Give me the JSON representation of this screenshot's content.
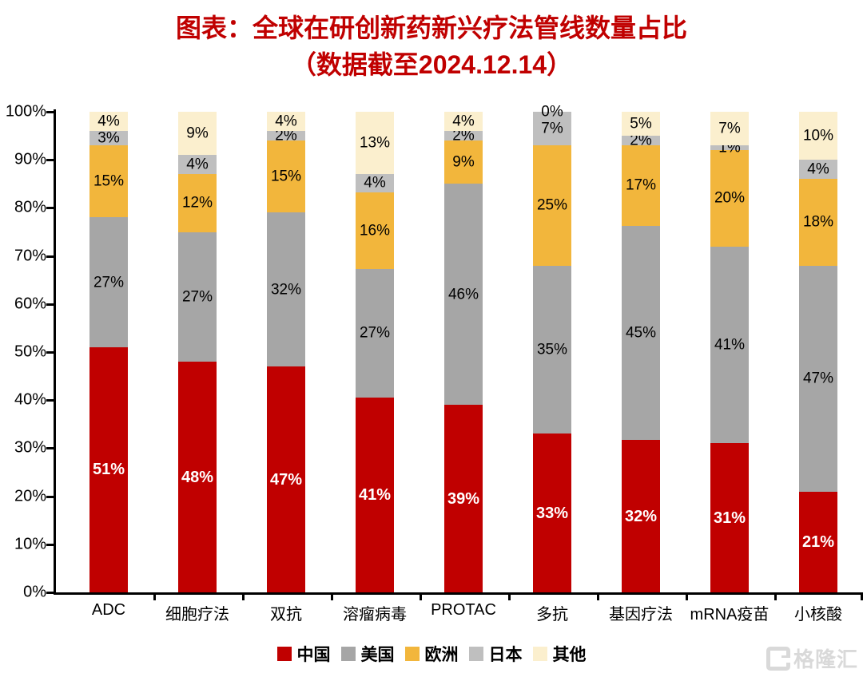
{
  "title": {
    "line1": "图表：全球在研创新药新兴疗法管线数量占比",
    "line2": "（数据截至2024.12.14）",
    "color": "#C00000"
  },
  "watermark": {
    "text": "格隆汇"
  },
  "chart_data": {
    "type": "bar",
    "stacked": true,
    "title": "图表：全球在研创新药新兴疗法管线数量占比（数据截至2024.12.14）",
    "categories": [
      "ADC",
      "细胞疗法",
      "双抗",
      "溶瘤病毒",
      "PROTAC",
      "多抗",
      "基因疗法",
      "mRNA疫苗",
      "小核酸"
    ],
    "series": [
      {
        "name": "中国",
        "color": "#C00000",
        "label_color": "#FFFFFF",
        "label_bold": true,
        "values": [
          51,
          48,
          47,
          41,
          39,
          33,
          32,
          31,
          21
        ]
      },
      {
        "name": "美国",
        "color": "#A6A6A6",
        "label_color": "#000000",
        "label_bold": false,
        "values": [
          27,
          27,
          32,
          27,
          46,
          35,
          45,
          41,
          47
        ]
      },
      {
        "name": "欧洲",
        "color": "#F2B63C",
        "label_color": "#000000",
        "label_bold": false,
        "values": [
          15,
          12,
          15,
          16,
          9,
          25,
          17,
          20,
          18
        ]
      },
      {
        "name": "日本",
        "color": "#BFBFBF",
        "label_color": "#000000",
        "label_bold": false,
        "values": [
          3,
          4,
          2,
          4,
          2,
          7,
          2,
          1,
          4
        ]
      },
      {
        "name": "其他",
        "color": "#FBEFCE",
        "label_color": "#000000",
        "label_bold": false,
        "values": [
          4,
          9,
          4,
          13,
          4,
          0,
          5,
          7,
          10
        ]
      }
    ],
    "data_labels": "percent",
    "xlabel": "",
    "ylabel": "",
    "ylim": [
      0,
      100
    ],
    "y_ticks": [
      "0%",
      "10%",
      "20%",
      "30%",
      "40%",
      "50%",
      "60%",
      "70%",
      "80%",
      "90%",
      "100%"
    ],
    "grid": false,
    "legend_position": "bottom",
    "axis_color": "#000000"
  }
}
